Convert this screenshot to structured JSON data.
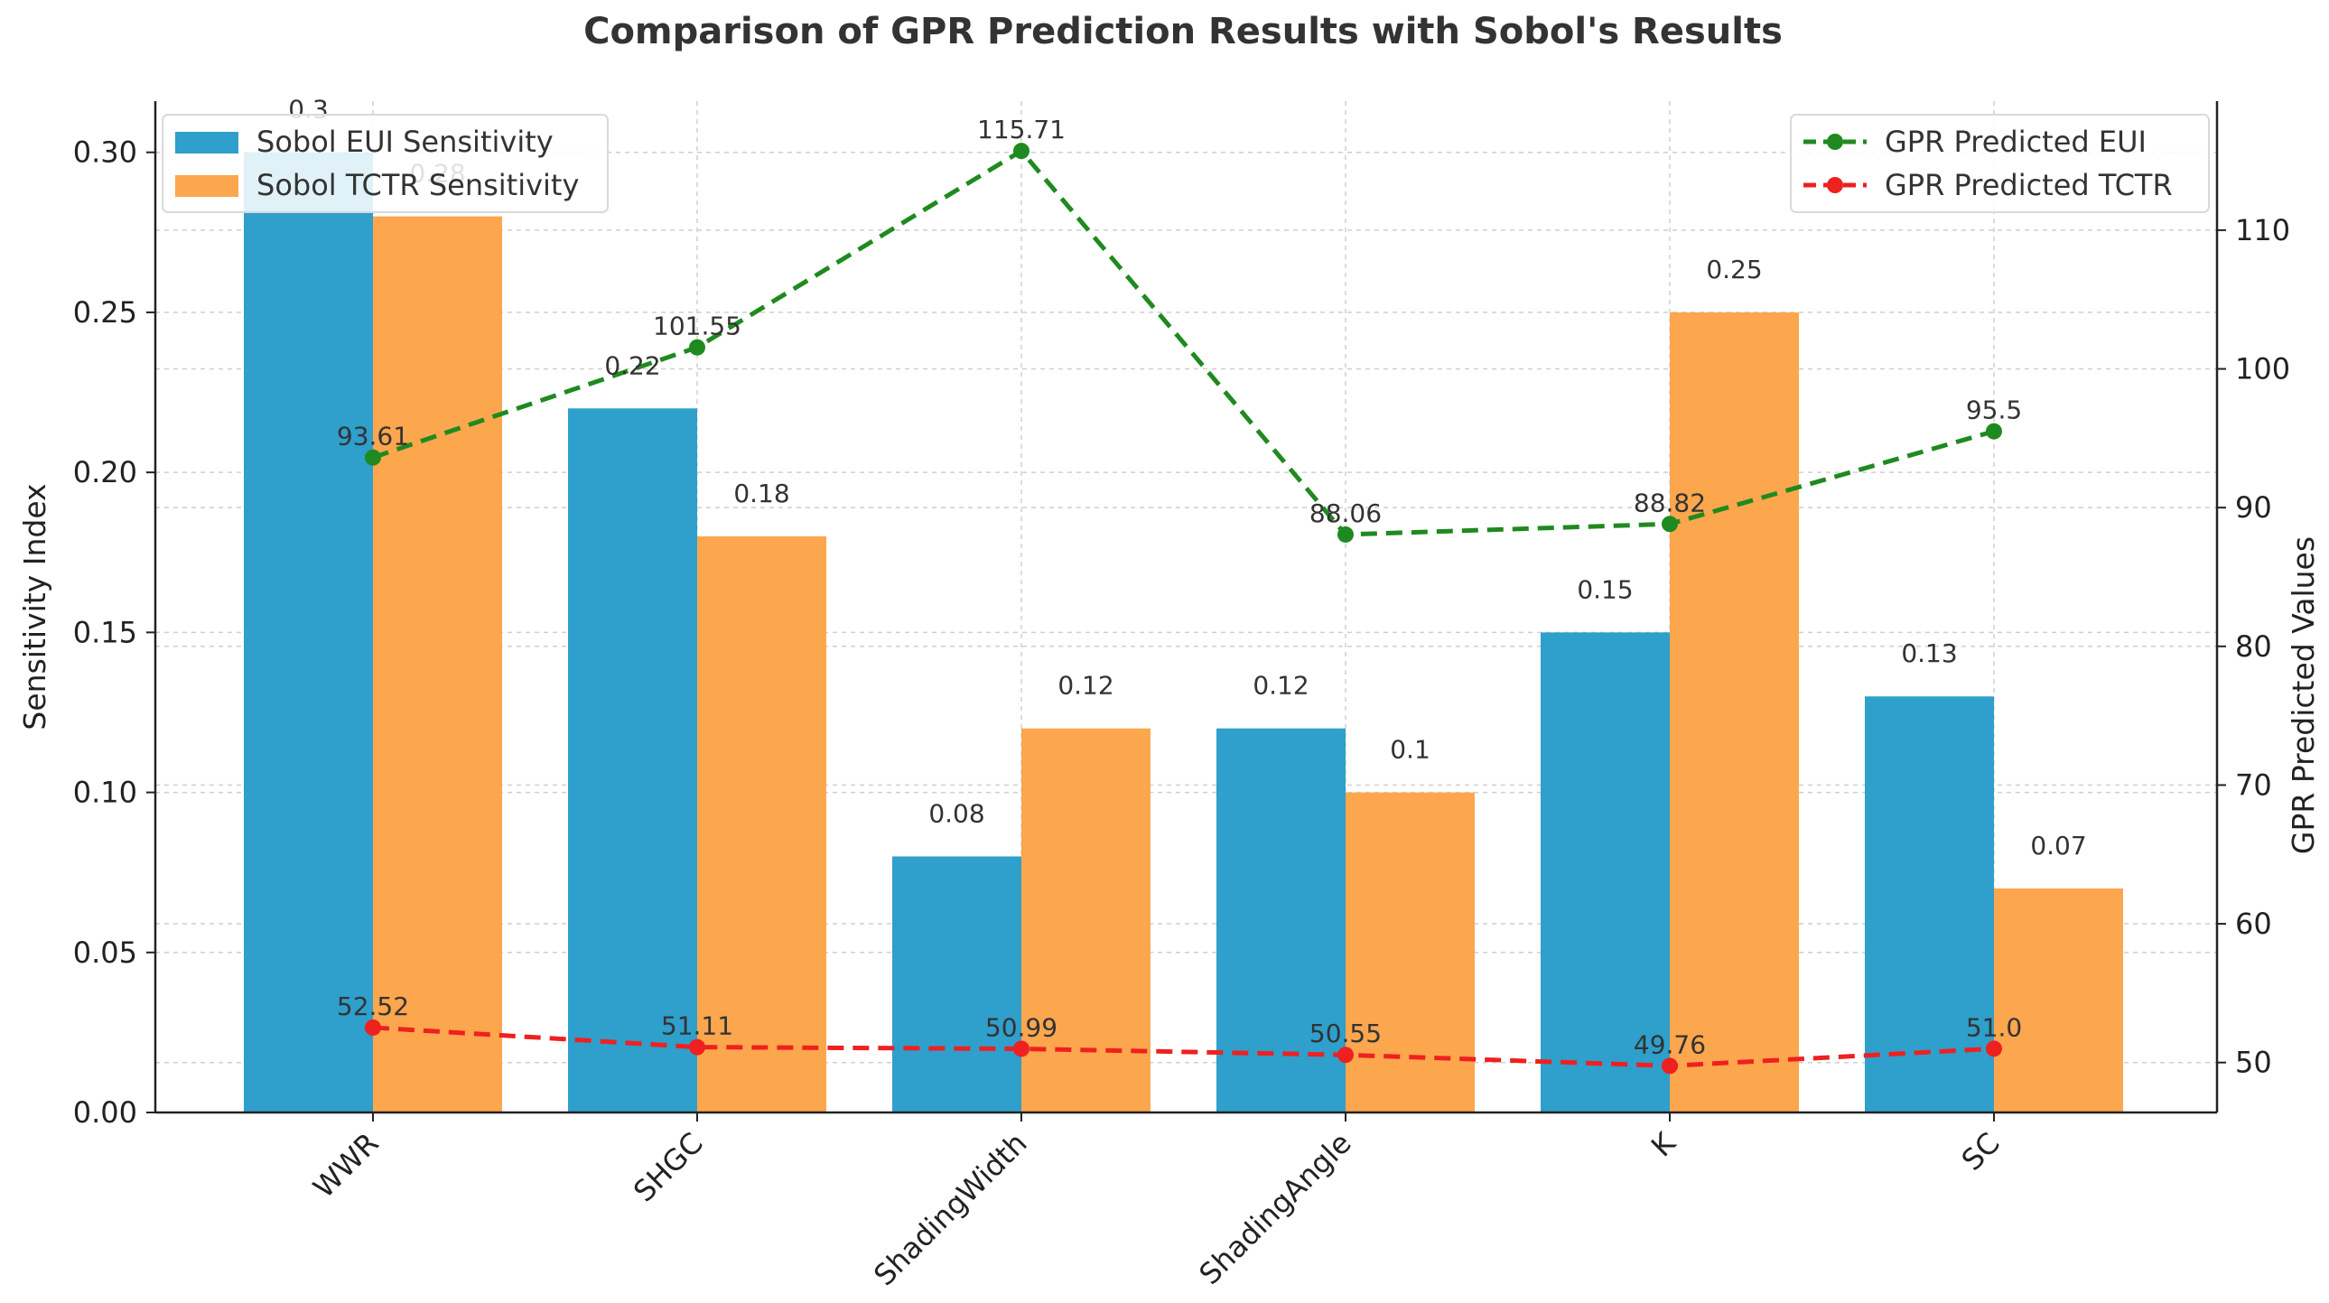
{
  "chart_data": {
    "type": "bar",
    "title": "Comparison of GPR Prediction Results with Sobol's Results",
    "categories": [
      "WWR",
      "SHGC",
      "ShadingWidth",
      "ShadingAngle",
      "K",
      "SC"
    ],
    "ylabel": "Sensitivity Index",
    "y2label": "GPR Predicted Values",
    "ylim": [
      0,
      0.316
    ],
    "y_ticks": [
      0.0,
      0.05,
      0.1,
      0.15,
      0.2,
      0.25,
      0.3
    ],
    "y_tick_labels": [
      "0.00",
      "0.05",
      "0.10",
      "0.15",
      "0.20",
      "0.25",
      "0.30"
    ],
    "y2lim": [
      46.4,
      119.3
    ],
    "y2_ticks": [
      50,
      60,
      70,
      80,
      90,
      100,
      110
    ],
    "y2_tick_labels": [
      "50",
      "60",
      "70",
      "80",
      "90",
      "100",
      "110"
    ],
    "grid": true,
    "series": [
      {
        "name": "Sobol EUI Sensitivity",
        "kind": "bar",
        "axis": "left",
        "color": "#2f9fcc",
        "values": [
          0.3,
          0.22,
          0.08,
          0.12,
          0.15,
          0.13
        ],
        "labels": [
          "0.3",
          "0.22",
          "0.08",
          "0.12",
          "0.15",
          "0.13"
        ]
      },
      {
        "name": "Sobol TCTR Sensitivity",
        "kind": "bar",
        "axis": "left",
        "color": "#fca64d",
        "values": [
          0.28,
          0.18,
          0.12,
          0.1,
          0.25,
          0.07
        ],
        "labels": [
          "0.28",
          "0.18",
          "0.12",
          "0.1",
          "0.25",
          "0.07"
        ]
      },
      {
        "name": "GPR Predicted EUI",
        "kind": "line",
        "axis": "right",
        "color": "#1f8a1f",
        "values": [
          93.61,
          101.55,
          115.71,
          88.06,
          88.82,
          95.5
        ],
        "labels": [
          "93.61",
          "101.55",
          "115.71",
          "88.06",
          "88.82",
          "95.5"
        ]
      },
      {
        "name": "GPR Predicted TCTR",
        "kind": "line",
        "axis": "right",
        "color": "#ef2020",
        "values": [
          52.52,
          51.11,
          50.99,
          50.55,
          49.76,
          51.0
        ],
        "labels": [
          "52.52",
          "51.11",
          "50.99",
          "50.55",
          "49.76",
          "51.0"
        ]
      }
    ],
    "legend": {
      "left": [
        "Sobol EUI Sensitivity",
        "Sobol TCTR Sensitivity"
      ],
      "right": [
        "GPR Predicted EUI",
        "GPR Predicted TCTR"
      ],
      "left_position": "top-left",
      "right_position": "top-right"
    }
  }
}
